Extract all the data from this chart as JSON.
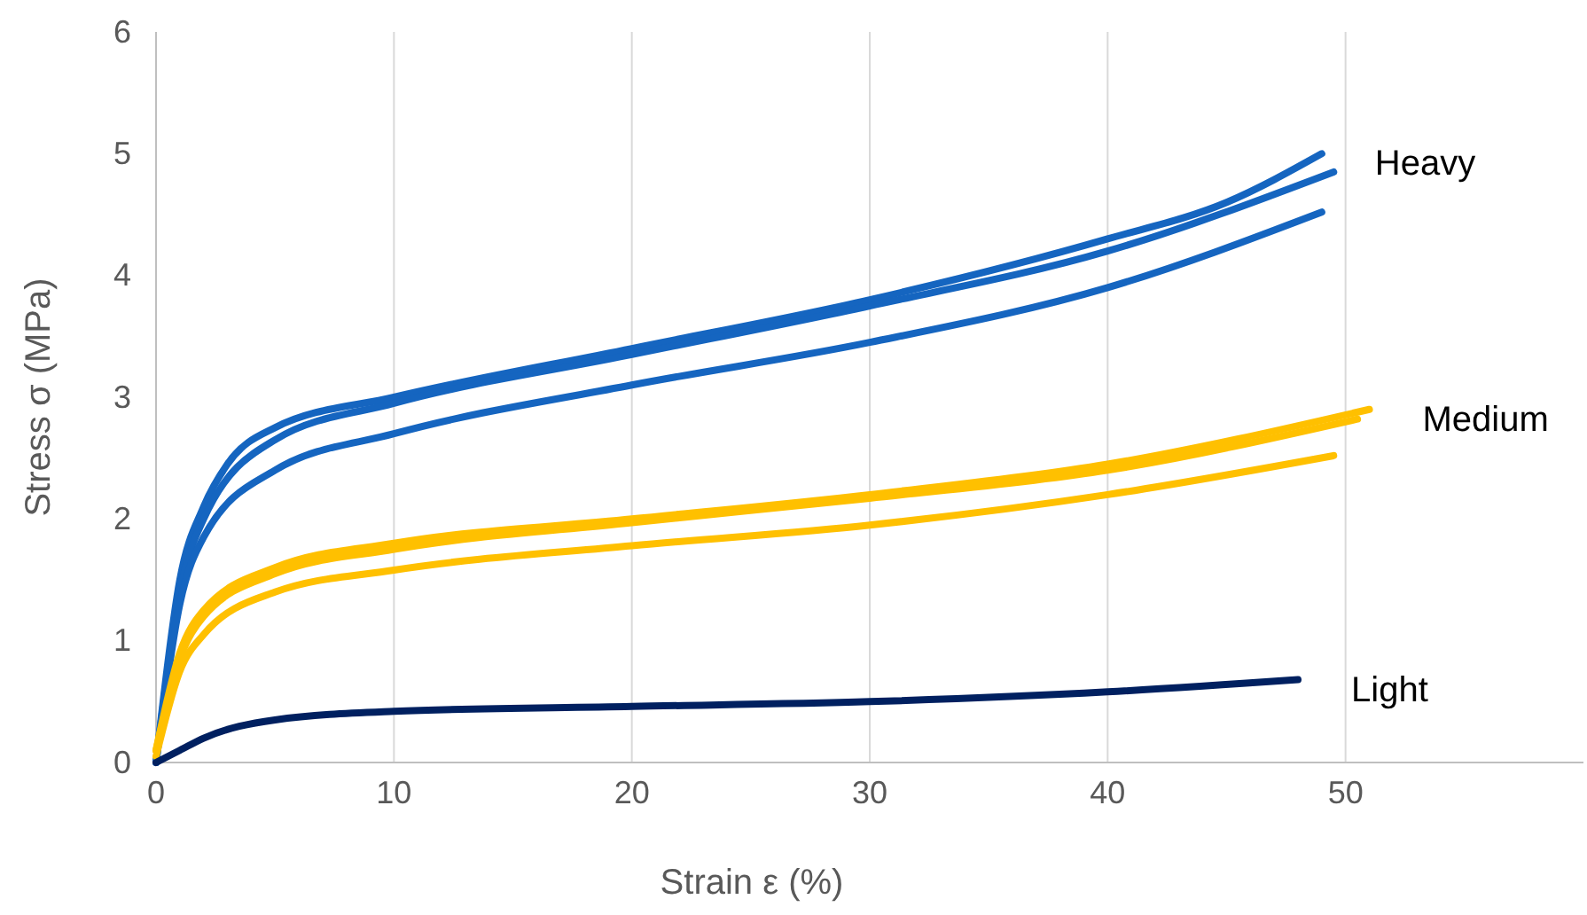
{
  "chart_data": {
    "type": "line",
    "xlabel": "Strain  ε (%)",
    "ylabel": "Stress σ (MPa)",
    "xlim": [
      0,
      60
    ],
    "xticks": [
      0,
      10,
      20,
      30,
      40,
      50
    ],
    "ylim": [
      0,
      6
    ],
    "yticks": [
      0,
      1,
      2,
      3,
      4,
      5,
      6
    ],
    "grid": "x",
    "legend": false,
    "marker": "none",
    "line_style": "solid",
    "series": [
      {
        "name": "Heavy",
        "color": "#1565c0",
        "x": [
          0,
          1,
          2,
          3,
          5,
          10,
          20,
          30,
          40,
          45,
          49
        ],
        "values": [
          0,
          1.5,
          2.1,
          2.45,
          2.75,
          3.0,
          3.4,
          3.8,
          4.3,
          4.6,
          5.0
        ]
      },
      {
        "color": "#1565c0",
        "x": [
          0,
          1,
          2,
          5,
          10,
          20,
          30,
          40,
          49.5
        ],
        "values": [
          0,
          1.4,
          2.0,
          2.65,
          2.95,
          3.35,
          3.75,
          4.2,
          4.85
        ]
      },
      {
        "color": "#1565c0",
        "x": [
          0,
          1,
          2,
          5,
          10,
          20,
          30,
          40,
          49
        ],
        "values": [
          0,
          1.3,
          1.85,
          2.4,
          2.7,
          3.1,
          3.45,
          3.9,
          4.52
        ]
      },
      {
        "name": "Medium",
        "color": "#ffc000",
        "x": [
          0,
          1,
          2,
          5,
          10,
          20,
          30,
          40,
          51
        ],
        "values": [
          0.1,
          0.9,
          1.25,
          1.6,
          1.8,
          2.0,
          2.2,
          2.45,
          2.9
        ]
      },
      {
        "color": "#ffc000",
        "x": [
          0,
          1,
          2,
          5,
          10,
          20,
          30,
          40,
          50.5
        ],
        "values": [
          0.1,
          0.85,
          1.2,
          1.55,
          1.75,
          1.97,
          2.17,
          2.4,
          2.82
        ]
      },
      {
        "color": "#ffc000",
        "x": [
          0,
          1,
          2,
          5,
          10,
          20,
          30,
          40,
          49.5
        ],
        "values": [
          0.05,
          0.75,
          1.05,
          1.4,
          1.58,
          1.78,
          1.95,
          2.2,
          2.52
        ]
      },
      {
        "name": "Light",
        "color": "#002060",
        "x": [
          0,
          1,
          2,
          5,
          10,
          20,
          30,
          40,
          48
        ],
        "values": [
          0,
          0.1,
          0.2,
          0.35,
          0.42,
          0.46,
          0.5,
          0.58,
          0.68
        ]
      }
    ]
  }
}
